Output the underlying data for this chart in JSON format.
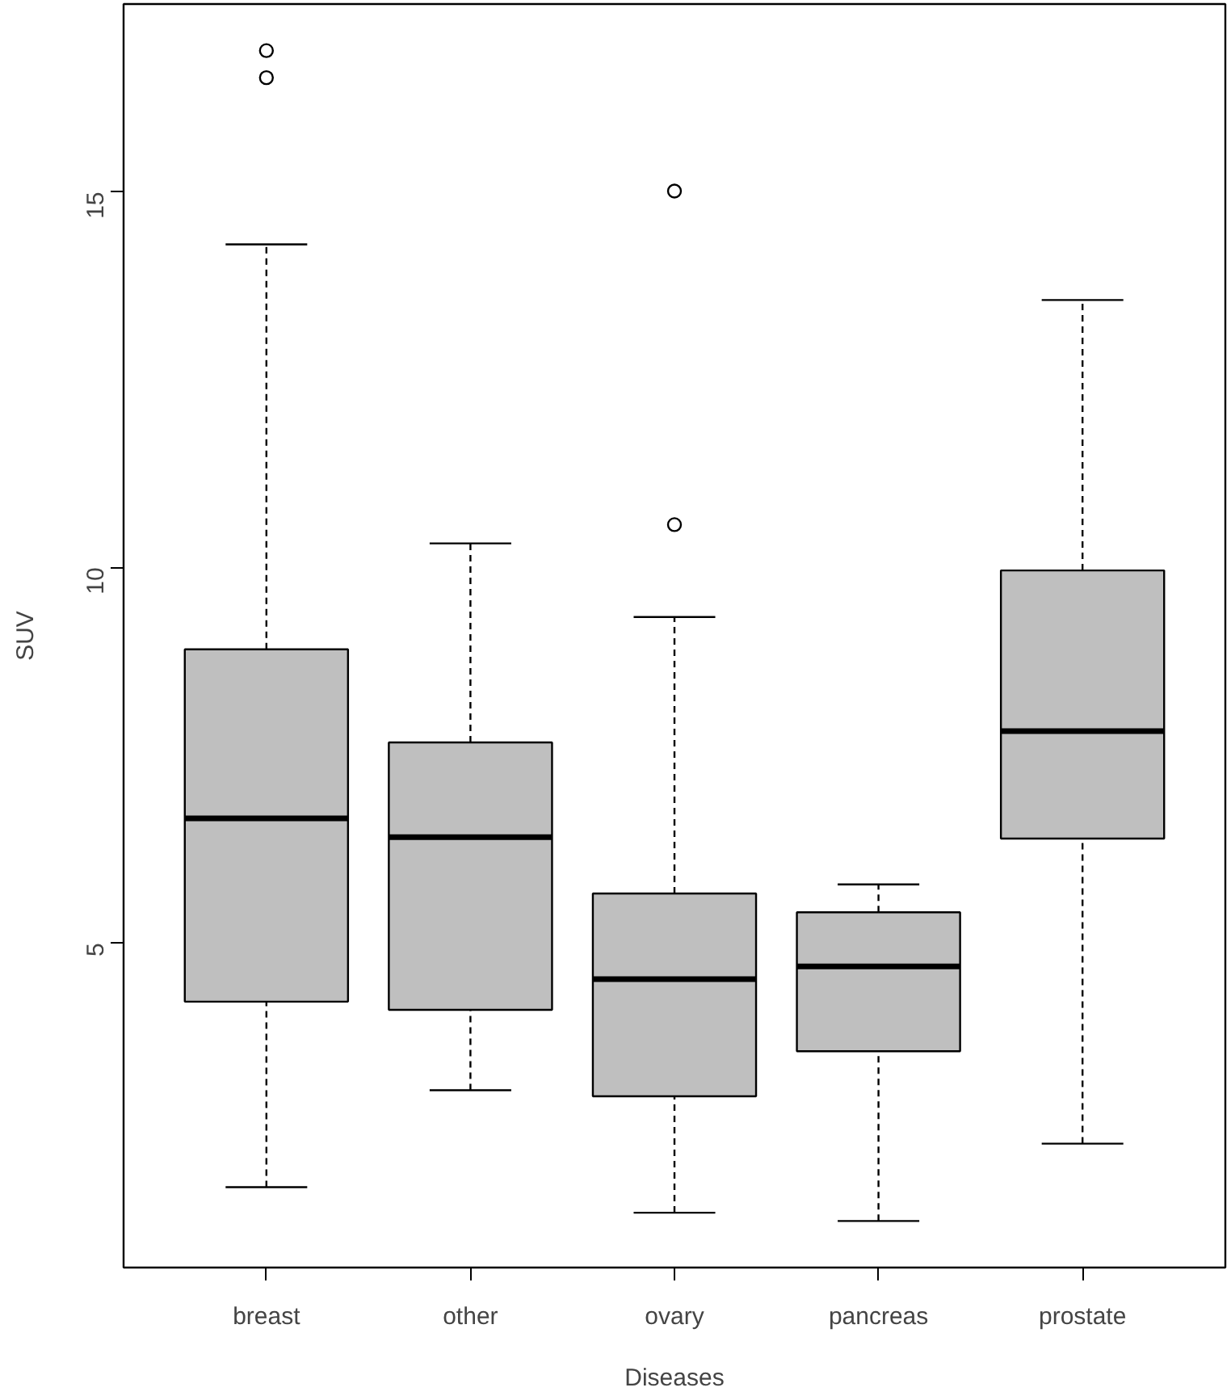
{
  "chart_data": {
    "type": "box",
    "xlabel": "Diseases",
    "ylabel": "SUV",
    "categories": [
      "breast",
      "other",
      "ovary",
      "pancreas",
      "prostate"
    ],
    "series": [
      {
        "color": "#bfbfbf",
        "boxes": [
          {
            "low": 1.75,
            "q1": 4.22,
            "median": 6.66,
            "q3": 8.91,
            "high": 14.3,
            "outliers": [
              16.52,
              16.88
            ]
          },
          {
            "low": 3.04,
            "q1": 4.11,
            "median": 6.41,
            "q3": 7.67,
            "high": 10.32
          },
          {
            "low": 1.41,
            "q1": 2.96,
            "median": 4.52,
            "q3": 5.66,
            "high": 9.34,
            "outliers": [
              10.57,
              15.01
            ]
          },
          {
            "low": 1.3,
            "q1": 3.56,
            "median": 4.69,
            "q3": 5.41,
            "high": 5.78
          },
          {
            "low": 2.33,
            "q1": 6.39,
            "median": 7.82,
            "q3": 9.96,
            "high": 13.56
          }
        ]
      }
    ],
    "ylim": [
      0.68,
      17.5
    ],
    "yticks": [
      5,
      10,
      15
    ],
    "grid": false
  }
}
